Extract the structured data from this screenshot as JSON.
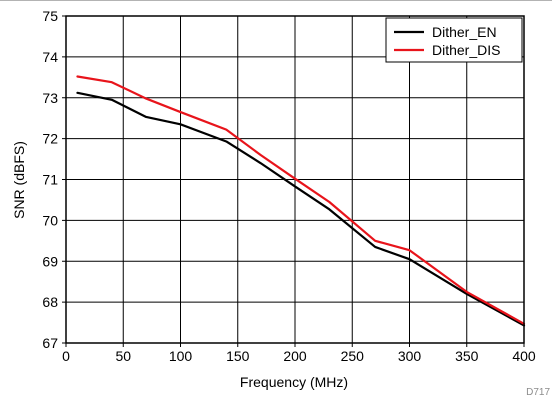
{
  "chart_data": {
    "type": "line",
    "xlabel": "Frequency (MHz)",
    "ylabel": "SNR (dBFS)",
    "xlim": [
      0,
      400
    ],
    "ylim": [
      67,
      75
    ],
    "xticks": [
      0,
      50,
      100,
      150,
      200,
      250,
      300,
      350,
      400
    ],
    "yticks": [
      67,
      68,
      69,
      70,
      71,
      72,
      73,
      74,
      75
    ],
    "grid": true,
    "legend_position": "top-right",
    "series": [
      {
        "name": "Dither_EN",
        "color": "#000000",
        "points": [
          [
            10,
            73.12
          ],
          [
            40,
            72.95
          ],
          [
            70,
            72.53
          ],
          [
            100,
            72.35
          ],
          [
            140,
            71.93
          ],
          [
            170,
            71.4
          ],
          [
            200,
            70.83
          ],
          [
            230,
            70.27
          ],
          [
            270,
            69.35
          ],
          [
            300,
            69.05
          ],
          [
            350,
            68.2
          ],
          [
            400,
            67.43
          ]
        ]
      },
      {
        "name": "Dither_DIS",
        "color": "#e8141b",
        "points": [
          [
            10,
            73.52
          ],
          [
            40,
            73.38
          ],
          [
            70,
            72.98
          ],
          [
            100,
            72.65
          ],
          [
            140,
            72.22
          ],
          [
            170,
            71.6
          ],
          [
            200,
            71.02
          ],
          [
            230,
            70.45
          ],
          [
            270,
            69.5
          ],
          [
            300,
            69.27
          ],
          [
            350,
            68.25
          ],
          [
            400,
            67.47
          ]
        ]
      }
    ],
    "annotation": "D717"
  }
}
